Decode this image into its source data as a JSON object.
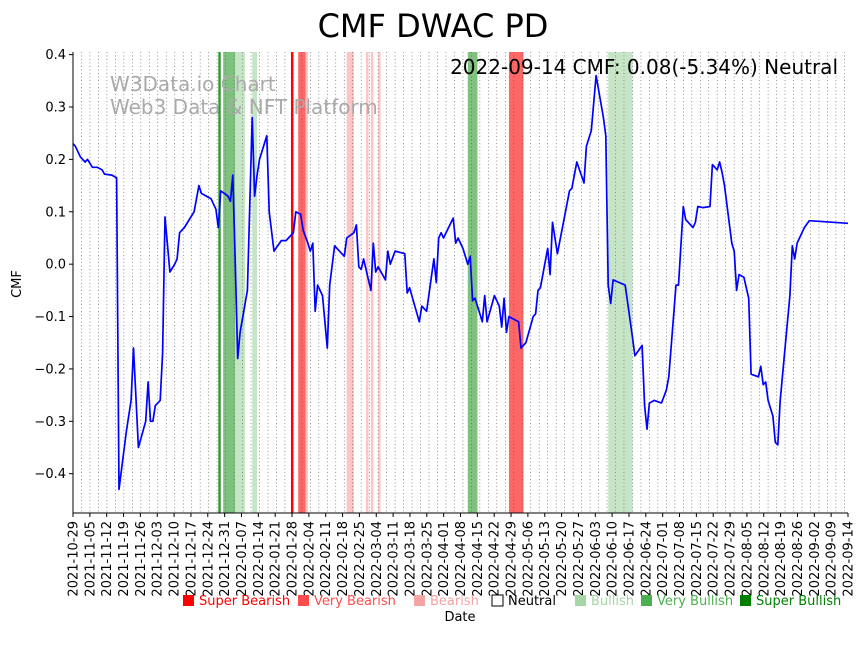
{
  "chart_data": {
    "type": "line",
    "title": "CMF DWAC PD",
    "xlabel": "Date",
    "ylabel": "CMF",
    "ylim": [
      -0.475,
      0.405
    ],
    "yticks": [
      0.4,
      0.3,
      0.2,
      0.1,
      0.0,
      -0.1,
      -0.2,
      -0.3,
      -0.4
    ],
    "ytick_labels": [
      "0.4",
      "0.3",
      "0.2",
      "0.1",
      "0.0",
      "−0.1",
      "−0.2",
      "−0.3",
      "−0.4"
    ],
    "xrange": [
      "2021-10-29",
      "2022-09-14"
    ],
    "xtick_labels": [
      "2021-10-29",
      "2021-11-05",
      "2021-11-12",
      "2021-11-19",
      "2021-11-26",
      "2021-12-03",
      "2021-12-10",
      "2021-12-17",
      "2021-12-24",
      "2021-12-31",
      "2022-01-07",
      "2022-01-14",
      "2022-01-21",
      "2022-01-28",
      "2022-02-04",
      "2022-02-11",
      "2022-02-18",
      "2022-02-25",
      "2022-03-04",
      "2022-03-11",
      "2022-03-18",
      "2022-03-25",
      "2022-04-01",
      "2022-04-08",
      "2022-04-15",
      "2022-04-22",
      "2022-04-29",
      "2022-05-06",
      "2022-05-13",
      "2022-05-20",
      "2022-05-27",
      "2022-06-03",
      "2022-06-10",
      "2022-06-17",
      "2022-06-24",
      "2022-07-01",
      "2022-07-08",
      "2022-07-15",
      "2022-07-22",
      "2022-07-29",
      "2022-08-05",
      "2022-08-12",
      "2022-08-19",
      "2022-08-26",
      "2022-09-02",
      "2022-09-09",
      "2022-09-14"
    ],
    "grid": "vertical-dotted",
    "watermark": [
      "W3Data.io Chart",
      "Web3 Data & NFT Platform"
    ],
    "annotation": "2022-09-14 CMF: 0.08(-5.34%) Neutral",
    "line_color": "#0000ff",
    "series": [
      {
        "name": "CMF",
        "points": [
          [
            "2021-10-29",
            0.23
          ],
          [
            "2021-10-30",
            0.225
          ],
          [
            "2021-11-01",
            0.205
          ],
          [
            "2021-11-03",
            0.195
          ],
          [
            "2021-11-04",
            0.2
          ],
          [
            "2021-11-06",
            0.185
          ],
          [
            "2021-11-08",
            0.185
          ],
          [
            "2021-11-10",
            0.18
          ],
          [
            "2021-11-11",
            0.172
          ],
          [
            "2021-11-14",
            0.17
          ],
          [
            "2021-11-16",
            0.165
          ],
          [
            "2021-11-17",
            -0.43
          ],
          [
            "2021-11-20",
            -0.32
          ],
          [
            "2021-11-22",
            -0.26
          ],
          [
            "2021-11-23",
            -0.16
          ],
          [
            "2021-11-25",
            -0.35
          ],
          [
            "2021-11-28",
            -0.3
          ],
          [
            "2021-11-29",
            -0.225
          ],
          [
            "2021-11-30",
            -0.3
          ],
          [
            "2021-12-01",
            -0.3
          ],
          [
            "2021-12-02",
            -0.27
          ],
          [
            "2021-12-04",
            -0.26
          ],
          [
            "2021-12-05",
            -0.17
          ],
          [
            "2021-12-06",
            0.09
          ],
          [
            "2021-12-08",
            -0.015
          ],
          [
            "2021-12-10",
            0.0
          ],
          [
            "2021-12-11",
            0.01
          ],
          [
            "2021-12-12",
            0.06
          ],
          [
            "2021-12-14",
            0.07
          ],
          [
            "2021-12-18",
            0.1
          ],
          [
            "2021-12-20",
            0.15
          ],
          [
            "2021-12-21",
            0.135
          ],
          [
            "2021-12-25",
            0.125
          ],
          [
            "2021-12-27",
            0.105
          ],
          [
            "2021-12-28",
            0.07
          ],
          [
            "2021-12-29",
            0.14
          ],
          [
            "2022-01-01",
            0.13
          ],
          [
            "2022-01-02",
            0.12
          ],
          [
            "2022-01-03",
            0.17
          ],
          [
            "2022-01-04",
            0.0
          ],
          [
            "2022-01-05",
            -0.18
          ],
          [
            "2022-01-06",
            -0.13
          ],
          [
            "2022-01-09",
            -0.05
          ],
          [
            "2022-01-11",
            0.28
          ],
          [
            "2022-01-12",
            0.13
          ],
          [
            "2022-01-13",
            0.17
          ],
          [
            "2022-01-14",
            0.2
          ],
          [
            "2022-01-17",
            0.245
          ],
          [
            "2022-01-18",
            0.1
          ],
          [
            "2022-01-20",
            0.025
          ],
          [
            "2022-01-23",
            0.045
          ],
          [
            "2022-01-25",
            0.045
          ],
          [
            "2022-01-26",
            0.05
          ],
          [
            "2022-01-28",
            0.06
          ],
          [
            "2022-01-29",
            0.1
          ],
          [
            "2022-01-31",
            0.095
          ],
          [
            "2022-02-01",
            0.065
          ],
          [
            "2022-02-03",
            0.04
          ],
          [
            "2022-02-04",
            0.025
          ],
          [
            "2022-02-05",
            0.04
          ],
          [
            "2022-02-06",
            -0.09
          ],
          [
            "2022-02-07",
            -0.04
          ],
          [
            "2022-02-09",
            -0.06
          ],
          [
            "2022-02-11",
            -0.16
          ],
          [
            "2022-02-12",
            -0.04
          ],
          [
            "2022-02-14",
            0.035
          ],
          [
            "2022-02-16",
            0.025
          ],
          [
            "2022-02-18",
            0.015
          ],
          [
            "2022-02-19",
            0.05
          ],
          [
            "2022-02-22",
            0.06
          ],
          [
            "2022-02-23",
            0.075
          ],
          [
            "2022-02-24",
            -0.005
          ],
          [
            "2022-02-25",
            -0.01
          ],
          [
            "2022-02-26",
            0.01
          ],
          [
            "2022-03-01",
            -0.05
          ],
          [
            "2022-03-02",
            0.04
          ],
          [
            "2022-03-03",
            -0.015
          ],
          [
            "2022-03-04",
            -0.005
          ],
          [
            "2022-03-07",
            -0.03
          ],
          [
            "2022-03-08",
            0.025
          ],
          [
            "2022-03-09",
            0.0
          ],
          [
            "2022-03-11",
            0.025
          ],
          [
            "2022-03-15",
            0.02
          ],
          [
            "2022-03-16",
            -0.055
          ],
          [
            "2022-03-17",
            -0.045
          ],
          [
            "2022-03-21",
            -0.11
          ],
          [
            "2022-03-22",
            -0.08
          ],
          [
            "2022-03-24",
            -0.09
          ],
          [
            "2022-03-27",
            0.01
          ],
          [
            "2022-03-28",
            -0.035
          ],
          [
            "2022-03-29",
            0.05
          ],
          [
            "2022-03-30",
            0.06
          ],
          [
            "2022-03-31",
            0.05
          ],
          [
            "2022-04-04",
            0.088
          ],
          [
            "2022-04-05",
            0.04
          ],
          [
            "2022-04-06",
            0.05
          ],
          [
            "2022-04-08",
            0.03
          ],
          [
            "2022-04-10",
            0.0
          ],
          [
            "2022-04-11",
            0.015
          ],
          [
            "2022-04-12",
            -0.07
          ],
          [
            "2022-04-13",
            -0.065
          ],
          [
            "2022-04-14",
            -0.08
          ],
          [
            "2022-04-16",
            -0.11
          ],
          [
            "2022-04-17",
            -0.06
          ],
          [
            "2022-04-18",
            -0.11
          ],
          [
            "2022-04-21",
            -0.06
          ],
          [
            "2022-04-23",
            -0.08
          ],
          [
            "2022-04-24",
            -0.12
          ],
          [
            "2022-04-25",
            -0.065
          ],
          [
            "2022-04-26",
            -0.13
          ],
          [
            "2022-04-27",
            -0.1
          ],
          [
            "2022-05-01",
            -0.11
          ],
          [
            "2022-05-02",
            -0.16
          ],
          [
            "2022-05-04",
            -0.15
          ],
          [
            "2022-05-07",
            -0.1
          ],
          [
            "2022-05-08",
            -0.095
          ],
          [
            "2022-05-09",
            -0.05
          ],
          [
            "2022-05-10",
            -0.045
          ],
          [
            "2022-05-13",
            0.03
          ],
          [
            "2022-05-14",
            -0.02
          ],
          [
            "2022-05-15",
            0.08
          ],
          [
            "2022-05-17",
            0.02
          ],
          [
            "2022-05-22",
            0.14
          ],
          [
            "2022-05-23",
            0.145
          ],
          [
            "2022-05-25",
            0.195
          ],
          [
            "2022-05-28",
            0.155
          ],
          [
            "2022-05-29",
            0.225
          ],
          [
            "2022-05-31",
            0.255
          ],
          [
            "2022-06-02",
            0.36
          ],
          [
            "2022-06-05",
            0.28
          ],
          [
            "2022-06-06",
            0.245
          ],
          [
            "2022-06-07",
            -0.04
          ],
          [
            "2022-06-08",
            -0.075
          ],
          [
            "2022-06-09",
            -0.03
          ],
          [
            "2022-06-14",
            -0.04
          ],
          [
            "2022-06-17",
            -0.14
          ],
          [
            "2022-06-18",
            -0.175
          ],
          [
            "2022-06-21",
            -0.155
          ],
          [
            "2022-06-22",
            -0.27
          ],
          [
            "2022-06-23",
            -0.315
          ],
          [
            "2022-06-24",
            -0.265
          ],
          [
            "2022-06-26",
            -0.26
          ],
          [
            "2022-06-29",
            -0.265
          ],
          [
            "2022-07-01",
            -0.24
          ],
          [
            "2022-07-02",
            -0.215
          ],
          [
            "2022-07-05",
            -0.04
          ],
          [
            "2022-07-06",
            -0.04
          ],
          [
            "2022-07-08",
            0.11
          ],
          [
            "2022-07-09",
            0.085
          ],
          [
            "2022-07-11",
            0.075
          ],
          [
            "2022-07-12",
            0.07
          ],
          [
            "2022-07-13",
            0.08
          ],
          [
            "2022-07-14",
            0.11
          ],
          [
            "2022-07-16",
            0.108
          ],
          [
            "2022-07-19",
            0.11
          ],
          [
            "2022-07-20",
            0.19
          ],
          [
            "2022-07-22",
            0.18
          ],
          [
            "2022-07-23",
            0.195
          ],
          [
            "2022-07-24",
            0.175
          ],
          [
            "2022-07-25",
            0.15
          ],
          [
            "2022-07-28",
            0.04
          ],
          [
            "2022-07-29",
            0.025
          ],
          [
            "2022-07-30",
            -0.05
          ],
          [
            "2022-07-31",
            -0.02
          ],
          [
            "2022-08-02",
            -0.025
          ],
          [
            "2022-08-04",
            -0.065
          ],
          [
            "2022-08-05",
            -0.21
          ],
          [
            "2022-08-08",
            -0.215
          ],
          [
            "2022-08-09",
            -0.195
          ],
          [
            "2022-08-10",
            -0.23
          ],
          [
            "2022-08-11",
            -0.225
          ],
          [
            "2022-08-12",
            -0.26
          ],
          [
            "2022-08-14",
            -0.29
          ],
          [
            "2022-08-15",
            -0.34
          ],
          [
            "2022-08-16",
            -0.345
          ],
          [
            "2022-08-17",
            -0.26
          ],
          [
            "2022-08-21",
            -0.06
          ],
          [
            "2022-08-22",
            0.035
          ],
          [
            "2022-08-23",
            0.01
          ],
          [
            "2022-08-24",
            0.04
          ],
          [
            "2022-08-27",
            0.07
          ],
          [
            "2022-08-29",
            0.083
          ],
          [
            "2022-09-14",
            0.078
          ]
        ]
      }
    ],
    "bands": [
      {
        "start": "2021-12-28",
        "end": "2021-12-29",
        "level": "super_bullish"
      },
      {
        "start": "2021-12-30",
        "end": "2022-01-04",
        "level": "very_bullish"
      },
      {
        "start": "2022-01-04",
        "end": "2022-01-08",
        "level": "bullish"
      },
      {
        "start": "2022-01-11",
        "end": "2022-01-13",
        "level": "bullish"
      },
      {
        "start": "2022-01-27",
        "end": "2022-01-28",
        "level": "super_bearish"
      },
      {
        "start": "2022-01-30",
        "end": "2022-02-02",
        "level": "very_bearish"
      },
      {
        "start": "2022-02-02",
        "end": "2022-02-03",
        "level": "bearish"
      },
      {
        "start": "2022-02-19",
        "end": "2022-02-22",
        "level": "bearish"
      },
      {
        "start": "2022-02-27",
        "end": "2022-02-28",
        "level": "bearish"
      },
      {
        "start": "2022-03-01",
        "end": "2022-03-02",
        "level": "bearish"
      },
      {
        "start": "2022-03-04",
        "end": "2022-03-05",
        "level": "bearish"
      },
      {
        "start": "2022-04-10",
        "end": "2022-04-14",
        "level": "very_bullish"
      },
      {
        "start": "2022-04-27",
        "end": "2022-05-03",
        "level": "very_bearish"
      },
      {
        "start": "2022-06-07",
        "end": "2022-06-17",
        "level": "bullish"
      }
    ],
    "legend": [
      {
        "key": "super_bearish",
        "label": "Super Bearish",
        "color": "#ff0000",
        "text_color": "#ff0000"
      },
      {
        "key": "very_bearish",
        "label": "Very Bearish",
        "color": "#ff4d4d",
        "text_color": "#ff4d4d"
      },
      {
        "key": "bearish",
        "label": "Bearish",
        "color": "#f5a3a3",
        "text_color": "#f5a3a3"
      },
      {
        "key": "neutral",
        "label": "Neutral",
        "color": "#ffffff",
        "text_color": "#000000"
      },
      {
        "key": "bullish",
        "label": "Bullish",
        "color": "#a5d6a5",
        "text_color": "#a5d6a5"
      },
      {
        "key": "very_bullish",
        "label": "Very Bullish",
        "color": "#4caf50",
        "text_color": "#4caf50"
      },
      {
        "key": "super_bullish",
        "label": "Super Bullish",
        "color": "#008000",
        "text_color": "#008000"
      }
    ],
    "band_fill": {
      "super_bearish": "#ff0000",
      "very_bearish": "#ff6666",
      "bearish": "#ffc4c4",
      "bullish": "#c6e5c6",
      "very_bullish": "#7fc27f",
      "super_bullish": "#2e9a2e"
    }
  }
}
